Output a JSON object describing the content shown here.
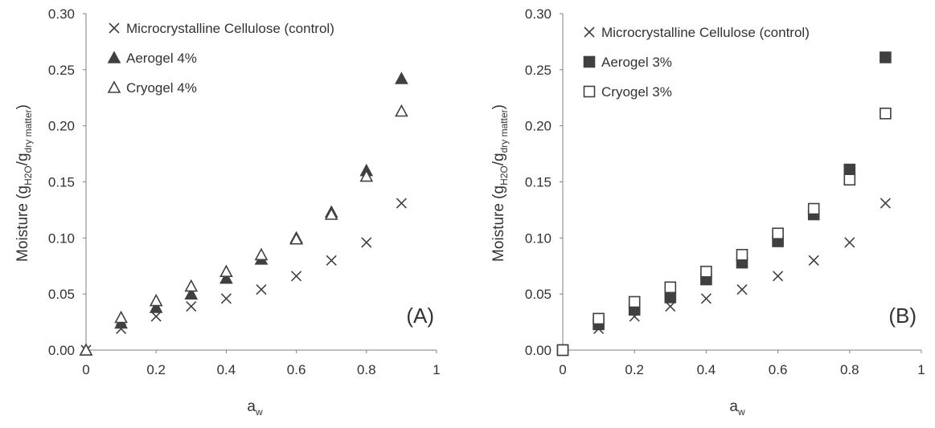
{
  "chart_data": [
    {
      "type": "scatter",
      "panel_label": "(A)",
      "xlabel": {
        "main": "a",
        "sub": "w"
      },
      "ylabel": {
        "prefix": "Moisture (g",
        "sub1": "H2O",
        "mid": "/g",
        "sub2": "dry matter",
        "suffix": ")"
      },
      "xlim": [
        0,
        1
      ],
      "ylim": [
        0,
        0.3
      ],
      "xticks": [
        "0",
        "0.2",
        "0.4",
        "0.6",
        "0.8",
        "1"
      ],
      "yticks": [
        "0.00",
        "0.05",
        "0.10",
        "0.15",
        "0.20",
        "0.25",
        "0.30"
      ],
      "grid": false,
      "legend_position": "top-left",
      "series": [
        {
          "name": "Microcrystalline Cellulose (control)",
          "marker": "x",
          "color": "#404040",
          "x": [
            0,
            0.1,
            0.2,
            0.3,
            0.4,
            0.5,
            0.6,
            0.7,
            0.8,
            0.9
          ],
          "y": [
            0.0,
            0.019,
            0.03,
            0.039,
            0.046,
            0.054,
            0.066,
            0.08,
            0.096,
            0.131
          ]
        },
        {
          "name": "Aerogel 4%",
          "marker": "triangle-filled",
          "color": "#404040",
          "x": [
            0,
            0.1,
            0.2,
            0.3,
            0.4,
            0.5,
            0.6,
            0.7,
            0.8,
            0.9
          ],
          "y": [
            0.0,
            0.024,
            0.038,
            0.05,
            0.064,
            0.081,
            0.1,
            0.123,
            0.16,
            0.242
          ]
        },
        {
          "name": "Cryogel 4%",
          "marker": "triangle-open",
          "color": "#404040",
          "x": [
            0,
            0.1,
            0.2,
            0.3,
            0.4,
            0.5,
            0.6,
            0.7,
            0.8,
            0.9
          ],
          "y": [
            0.0,
            0.029,
            0.044,
            0.057,
            0.07,
            0.085,
            0.099,
            0.121,
            0.155,
            0.213
          ]
        }
      ]
    },
    {
      "type": "scatter",
      "panel_label": "(B)",
      "xlabel": {
        "main": "a",
        "sub": "w"
      },
      "ylabel": {
        "prefix": "Moisture (g",
        "sub1": "H2O",
        "mid": "/g",
        "sub2": "dry matter",
        "suffix": ")"
      },
      "xlim": [
        0,
        1
      ],
      "ylim": [
        0,
        0.3
      ],
      "xticks": [
        "0",
        "0.2",
        "0.4",
        "0.6",
        "0.8",
        "1"
      ],
      "yticks": [
        "0.00",
        "0.05",
        "0.10",
        "0.15",
        "0.20",
        "0.25",
        "0.30"
      ],
      "grid": false,
      "legend_position": "top-left",
      "series": [
        {
          "name": "Microcrystalline Cellulose (control)",
          "marker": "x",
          "color": "#404040",
          "x": [
            0,
            0.1,
            0.2,
            0.3,
            0.4,
            0.5,
            0.6,
            0.7,
            0.8,
            0.9
          ],
          "y": [
            0.0,
            0.019,
            0.03,
            0.039,
            0.046,
            0.054,
            0.066,
            0.08,
            0.096,
            0.131
          ]
        },
        {
          "name": "Aerogel 3%",
          "marker": "square-filled",
          "color": "#404040",
          "x": [
            0,
            0.1,
            0.2,
            0.3,
            0.4,
            0.5,
            0.6,
            0.7,
            0.8,
            0.9
          ],
          "y": [
            0.0,
            0.023,
            0.036,
            0.047,
            0.063,
            0.078,
            0.097,
            0.121,
            0.161,
            0.261
          ]
        },
        {
          "name": "Cryogel 3%",
          "marker": "square-open",
          "color": "#404040",
          "x": [
            0,
            0.1,
            0.2,
            0.3,
            0.4,
            0.5,
            0.6,
            0.7,
            0.8,
            0.9
          ],
          "y": [
            0.0,
            0.028,
            0.043,
            0.056,
            0.07,
            0.085,
            0.104,
            0.126,
            0.152,
            0.211
          ]
        }
      ]
    }
  ]
}
